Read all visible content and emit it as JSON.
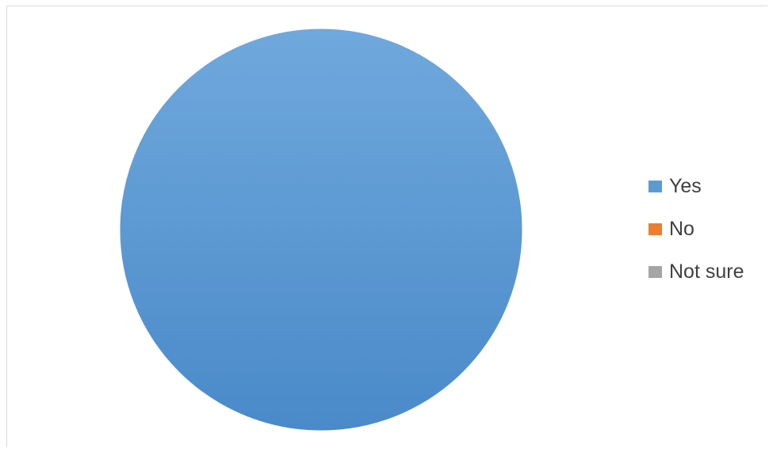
{
  "chart_data": {
    "type": "pie",
    "title": "",
    "categories": [
      "Yes",
      "No",
      "Not sure"
    ],
    "values": [
      100,
      0,
      0
    ],
    "colors": [
      "#5B9BD5",
      "#ED7D31",
      "#A5A5A5"
    ],
    "legend_position": "right"
  }
}
